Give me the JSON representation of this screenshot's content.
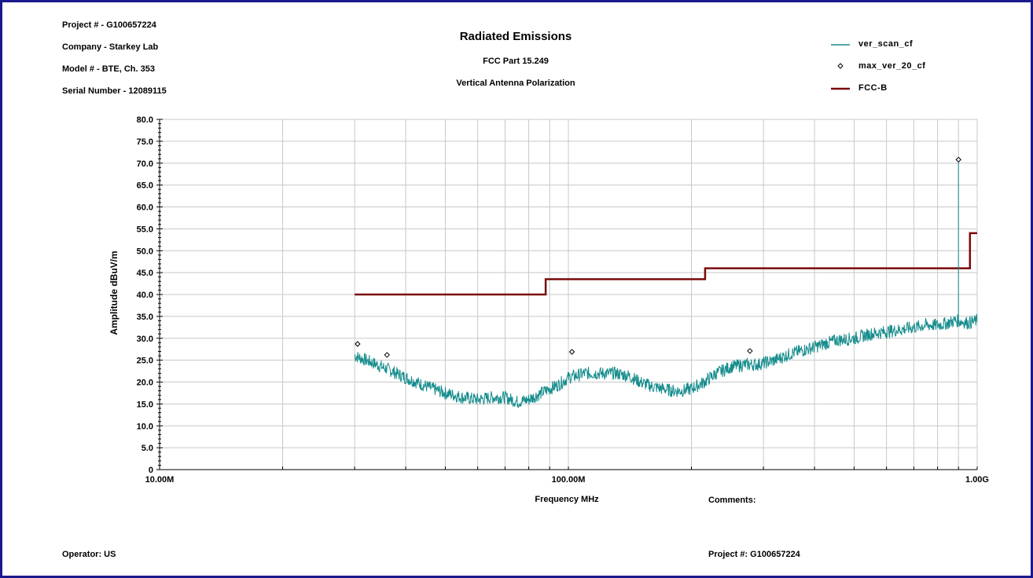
{
  "header": {
    "project": "Project # - G100657224",
    "company": "Company - Starkey Lab",
    "model": "Model # - BTE, Ch. 353",
    "serial": "Serial Number - 12089115",
    "title": "Radiated Emissions",
    "subtitle": "FCC Part 15.249",
    "subtitle2": "Vertical Antenna Polarization"
  },
  "footer": {
    "comments": "Comments:",
    "operator": "Operator: US",
    "project": "Project #: G100657224"
  },
  "colors": {
    "frame": "#1a1a8c",
    "scan": "#168c8c",
    "limit": "#7a0a0a",
    "grid": "#c8c8c8"
  },
  "chart_data": {
    "type": "line",
    "title": "Radiated Emissions",
    "xlabel": "Frequency MHz",
    "ylabel": "Amplitude dBuV/m",
    "x_scale": "log",
    "xlim": [
      10,
      1000
    ],
    "ylim": [
      0,
      80
    ],
    "x_tick_labels": [
      {
        "value": 10,
        "label": "10.00M"
      },
      {
        "value": 100,
        "label": "100.00M"
      },
      {
        "value": 1000,
        "label": "1.00G"
      }
    ],
    "y_ticks": [
      0,
      5,
      10,
      15,
      20,
      25,
      30,
      35,
      40,
      45,
      50,
      55,
      60,
      65,
      70,
      75,
      80
    ],
    "y_tick_labels": [
      "0",
      "5.0",
      "10.0",
      "15.0",
      "20.0",
      "25.0",
      "30.0",
      "35.0",
      "40.0",
      "45.0",
      "50.0",
      "55.0",
      "60.0",
      "65.0",
      "70.0",
      "75.0",
      "80.0"
    ],
    "grid": true,
    "legend_position": "top-right",
    "series": [
      {
        "name": "ver_scan_cf",
        "style": "line",
        "x": [
          30,
          33,
          36,
          40,
          45,
          50,
          55,
          60,
          65,
          70,
          75,
          80,
          88,
          95,
          100,
          110,
          120,
          130,
          140,
          150,
          160,
          170,
          180,
          190,
          200,
          215,
          230,
          250,
          270,
          290,
          320,
          350,
          400,
          450,
          500,
          550,
          600,
          650,
          700,
          750,
          800,
          850,
          880,
          890,
          900,
          950,
          1000
        ],
        "y": [
          26,
          24.5,
          23,
          21,
          19,
          17.5,
          16.5,
          16,
          16.5,
          16.5,
          15.5,
          16,
          18,
          19.5,
          21,
          22,
          22,
          22,
          21.5,
          20,
          19,
          18.5,
          18,
          18,
          18.5,
          20,
          22,
          23.5,
          24,
          24,
          25,
          26.5,
          28,
          29.5,
          30,
          31,
          31.5,
          32,
          32.5,
          33,
          33,
          33.5,
          34,
          34,
          34,
          33.5,
          34
        ],
        "noise_amplitude": 1.5,
        "spikes": [
          {
            "x": 900,
            "y": 70.5
          }
        ]
      },
      {
        "name": "max_ver_20_cf",
        "style": "markers",
        "x": [
          30.5,
          36,
          102,
          278,
          900
        ],
        "y": [
          28.7,
          26.2,
          26.9,
          27.1,
          70.8
        ]
      },
      {
        "name": "FCC-B",
        "style": "step",
        "x": [
          30,
          88,
          88,
          216,
          216,
          960,
          960,
          1000
        ],
        "y": [
          40,
          40,
          43.5,
          43.5,
          46,
          46,
          54,
          54
        ]
      }
    ]
  }
}
